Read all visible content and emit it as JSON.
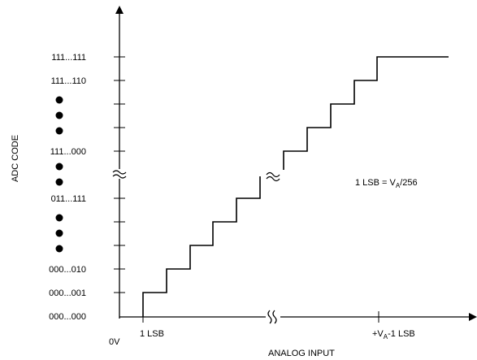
{
  "y_axis": {
    "label": "ADC CODE",
    "codes": [
      "111...111",
      "111...110",
      "111...000",
      "011...111",
      "000...010",
      "000...001",
      "000...000"
    ]
  },
  "x_axis": {
    "label": "ANALOG INPUT",
    "origin_label": "0V",
    "first_step_label": "1 LSB",
    "last_step_prefix": "+V",
    "last_step_sub": "A",
    "last_step_suffix": "-1 LSB"
  },
  "annotation": {
    "prefix": "1 LSB = V",
    "sub": "A",
    "suffix": "/256"
  }
}
